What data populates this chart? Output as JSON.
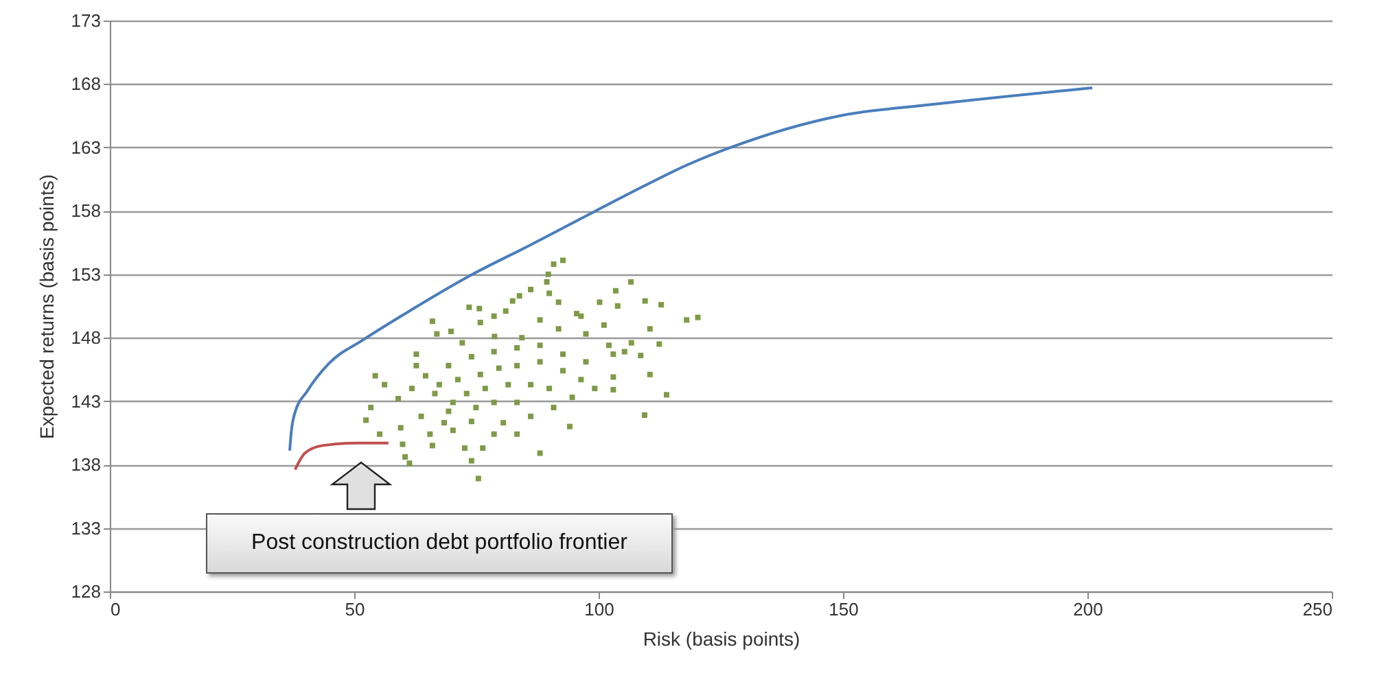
{
  "chart_data": {
    "type": "scatter",
    "xlabel": "Risk (basis points)",
    "ylabel": "Expected returns (basis points)",
    "xlim": [
      0,
      250
    ],
    "xticks": [
      0,
      50,
      100,
      150,
      200,
      250
    ],
    "ylim": [
      128,
      173
    ],
    "yticks": [
      128,
      133,
      138,
      143,
      148,
      153,
      158,
      163,
      168,
      173
    ],
    "grid": "y",
    "annotations": [
      "Post construction debt portfolio frontier"
    ],
    "series": [
      {
        "type": "line",
        "color": "#4a7ebb",
        "x": [
          36.8,
          37.1,
          37.8,
          40.4,
          44.9,
          51.7,
          60,
          74.2,
          86,
          98.9,
          110,
          118,
          127,
          149.4,
          168.5,
          201
        ],
        "values": [
          139.1,
          140.5,
          142.0,
          143.8,
          146.0,
          147.8,
          149.8,
          153.0,
          155.3,
          157.9,
          160.1,
          161.6,
          163.0,
          165.5,
          166.4,
          167.7
        ]
      },
      {
        "type": "line",
        "color": "#c0504d",
        "x": [
          37.9,
          39.9,
          43.5,
          50.6,
          57.0
        ],
        "values": [
          137.6,
          138.9,
          139.5,
          139.7,
          139.7
        ]
      },
      {
        "color": "#7f9a48",
        "marker": "square",
        "x": [
          92.7,
          90.8,
          89.7,
          89.4,
          106.6,
          103.5,
          86.1,
          89.9,
          83.8,
          82.4,
          91.8,
          100.2,
          103.9,
          109.5,
          112.8,
          73.5,
          75.6,
          78.6,
          81.0,
          95.5,
          96.4,
          66.0,
          118.0,
          120.3,
          110.5,
          75.8,
          88.0,
          101.1,
          69.8,
          66.9,
          112.4,
          106.7,
          105.3,
          108.6,
          102.1,
          97.4,
          91.8,
          84.3,
          78.7,
          72.1,
          62.7,
          62.7,
          54.3,
          56.2,
          110.5,
          103.0,
          99.2,
          103.0,
          113.9,
          109.4,
          94.1,
          88.0,
          75.4,
          74.0,
          61.3,
          60.4,
          52.4,
          53.4,
          55.2,
          59.9,
          66.0,
          72.6,
          76.3,
          59.5,
          65.5,
          70.2,
          78.6,
          83.3,
          59.0,
          61.8,
          66.5,
          69.3,
          74.0,
          80.5,
          86.1,
          90.8,
          94.6,
          64.6,
          69.3,
          74.0,
          78.6,
          83.3,
          88.0,
          92.7,
          97.4,
          67.4,
          71.2,
          75.8,
          79.6,
          83.3,
          88.0,
          92.7,
          96.4,
          73.0,
          76.8,
          81.5,
          86.1,
          89.9,
          74.9,
          78.6,
          83.3,
          70.2,
          63.7,
          68.4,
          103.0
        ],
        "values": [
          154.1,
          153.8,
          153.0,
          152.4,
          152.4,
          151.7,
          151.8,
          151.5,
          151.3,
          150.9,
          150.8,
          150.8,
          150.5,
          150.9,
          150.6,
          150.4,
          150.3,
          149.7,
          150.1,
          149.9,
          149.7,
          149.3,
          149.4,
          149.6,
          148.7,
          149.2,
          149.4,
          149.0,
          148.5,
          148.3,
          147.5,
          147.6,
          146.9,
          146.6,
          147.4,
          148.3,
          148.7,
          148.0,
          148.1,
          147.6,
          146.7,
          145.8,
          145.0,
          144.3,
          145.1,
          144.9,
          144.0,
          143.9,
          143.5,
          141.9,
          141.0,
          138.9,
          136.9,
          138.3,
          138.1,
          138.6,
          141.5,
          142.5,
          140.4,
          139.6,
          139.5,
          139.3,
          139.3,
          140.9,
          140.4,
          140.7,
          140.4,
          140.4,
          143.2,
          144.0,
          143.6,
          142.2,
          141.4,
          141.3,
          141.8,
          142.5,
          143.3,
          145.0,
          145.8,
          146.5,
          146.9,
          147.2,
          147.4,
          146.7,
          146.1,
          144.3,
          144.7,
          145.1,
          145.6,
          145.8,
          146.1,
          145.4,
          144.7,
          143.6,
          144.0,
          144.3,
          144.3,
          144.0,
          142.5,
          142.9,
          142.9,
          142.9,
          141.8,
          141.3,
          146.7
        ]
      }
    ]
  }
}
